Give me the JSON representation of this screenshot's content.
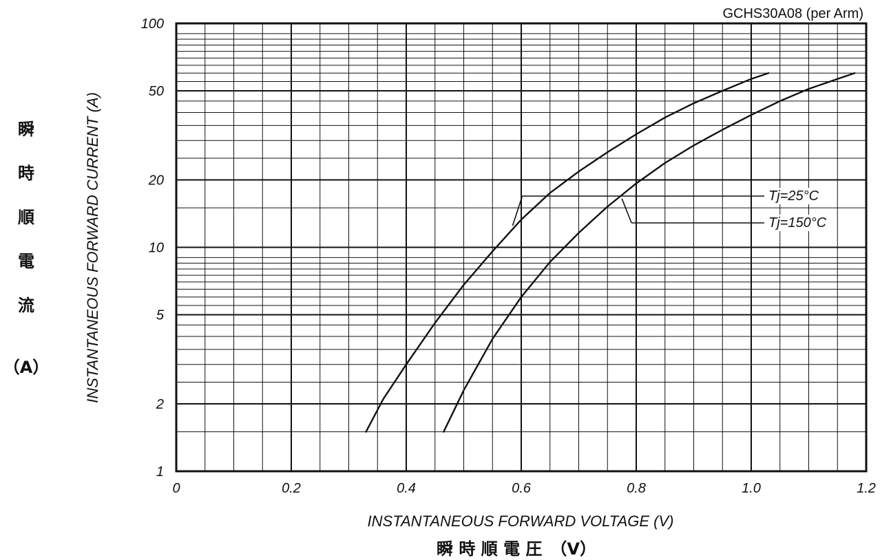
{
  "chart_data": {
    "type": "line",
    "title": "GCHS30A08 (per Arm)",
    "xlabel": "INSTANTANEOUS FORWARD VOLTAGE (V)",
    "xlabel_jp": "瞬 時 順 電 圧　（V）",
    "ylabel": "INSTANTANEOUS FORWARD CURRENT (A)",
    "ylabel_jp": [
      "瞬",
      "時",
      "順",
      "電",
      "流"
    ],
    "ylabel_jp_unit": "（A）",
    "x_scale": "linear",
    "y_scale": "log",
    "xlim": [
      0,
      1.2
    ],
    "ylim": [
      1,
      100
    ],
    "x_ticks": [
      "0",
      "0.2",
      "0.4",
      "0.6",
      "0.8",
      "1.0",
      "1.2"
    ],
    "y_ticks": [
      "1",
      "2",
      "5",
      "10",
      "20",
      "50",
      "100"
    ],
    "grid": true,
    "series": [
      {
        "name": "Tj=25°C",
        "x": [
          0.33,
          0.36,
          0.4,
          0.45,
          0.5,
          0.55,
          0.6,
          0.65,
          0.7,
          0.75,
          0.8,
          0.85,
          0.9,
          0.95,
          1.0,
          1.03
        ],
        "y": [
          1.5,
          2.1,
          3.0,
          4.6,
          6.8,
          9.6,
          13.3,
          17.5,
          21.8,
          26.6,
          32.0,
          38.0,
          44.0,
          50.0,
          56.5,
          60
        ]
      },
      {
        "name": "Tj=150°C",
        "x": [
          0.465,
          0.5,
          0.55,
          0.6,
          0.65,
          0.7,
          0.75,
          0.8,
          0.85,
          0.9,
          0.95,
          1.0,
          1.05,
          1.1,
          1.15,
          1.18
        ],
        "y": [
          1.5,
          2.3,
          3.9,
          6.0,
          8.6,
          11.6,
          15.2,
          19.3,
          23.8,
          28.5,
          33.5,
          39.0,
          45.0,
          51.0,
          56.5,
          60
        ]
      }
    ]
  }
}
